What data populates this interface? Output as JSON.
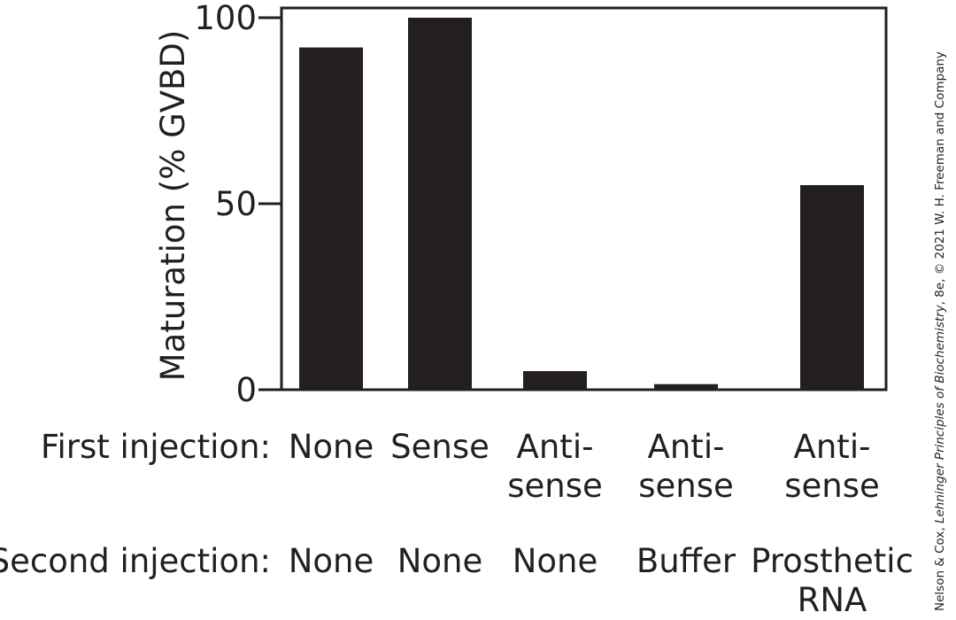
{
  "chart_data": {
    "type": "bar",
    "title": "",
    "ylabel": "Maturation (% GVBD)",
    "xlabel": "",
    "ylim": [
      0,
      100
    ],
    "yticks": [
      0,
      50,
      100
    ],
    "categories": [
      "None / None",
      "Sense / None",
      "Antisense / None",
      "Antisense / Buffer",
      "Antisense / Prosthetic RNA"
    ],
    "values": [
      92,
      100,
      5,
      1.5,
      55
    ],
    "bar_color": "#231f20",
    "grid": false,
    "legend": "none"
  },
  "rows": {
    "first_label": "First injection:",
    "second_label": "Second injection:",
    "first": [
      "None",
      "Sense",
      "Anti-\nsense",
      "Anti-\nsense",
      "Anti-\nsense"
    ],
    "second": [
      "None",
      "None",
      "None",
      "Buffer",
      "Prosthetic\nRNA"
    ]
  },
  "credit": {
    "prefix": "Nelson & Cox, ",
    "book": "Lehninger Principles of Biochemistry",
    "suffix": ", 8e, © 2021 W. H. Freeman and Company"
  }
}
